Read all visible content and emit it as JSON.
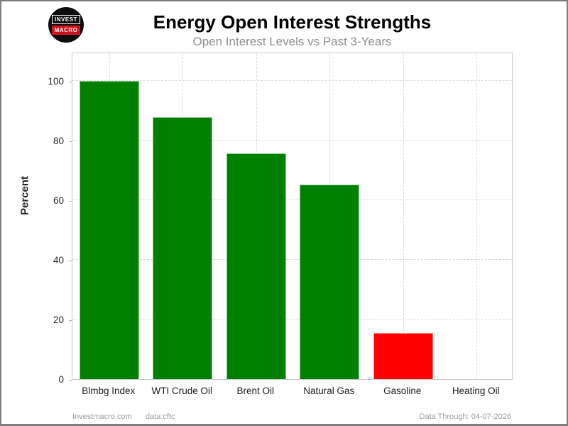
{
  "header": {
    "title": "Energy Open Interest Strengths",
    "subtitle": "Open Interest Levels vs Past 3-Years",
    "logo": {
      "line1": "INVEST",
      "line2": "MACRO",
      "circle_color": "#0d0d0d",
      "accent_color": "#d0111b"
    }
  },
  "chart_data": {
    "type": "bar",
    "title": "Energy Open Interest Strengths",
    "subtitle": "Open Interest Levels vs Past 3-Years",
    "categories": [
      "Blmbg Index",
      "WTI Crude Oil",
      "Brent Oil",
      "Natural Gas",
      "Gasoline",
      "Heating Oil"
    ],
    "values": [
      100,
      88,
      75.7,
      65.3,
      15.5,
      0
    ],
    "bar_colors": [
      "#008000",
      "#008000",
      "#008000",
      "#008000",
      "#ff0000",
      "#ff0000"
    ],
    "xlabel": "",
    "ylabel": "Percent",
    "yticks": [
      0,
      20,
      40,
      60,
      80,
      100
    ],
    "ylim": [
      0,
      109.8
    ],
    "grid": "dashed-both-axes",
    "legend": "none",
    "positive_color": "#008000",
    "negative_color": "#ff0000"
  },
  "footer": {
    "site": "Investmacro.com",
    "source": "data:cftc",
    "data_through": "Data Through: 04-07-2026"
  }
}
